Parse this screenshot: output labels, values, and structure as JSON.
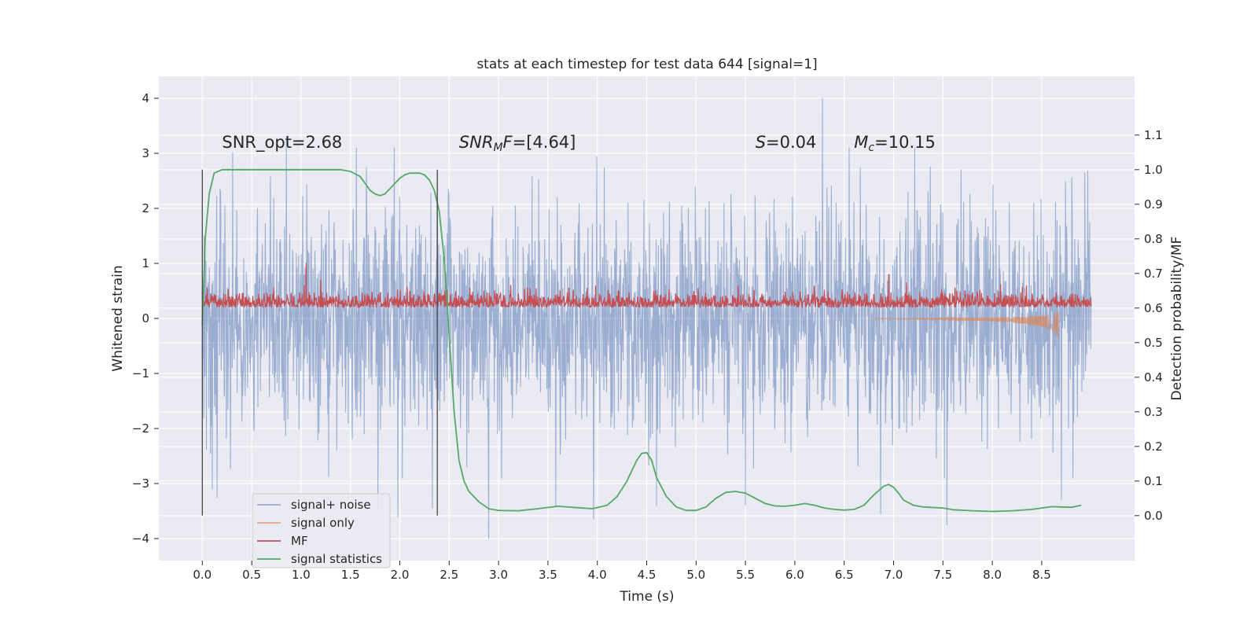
{
  "chart_data": {
    "type": "line",
    "title": "stats at each timestep for test data 644 [signal=1]",
    "xlabel": "Time (s)",
    "ylabel": "Whitened strain",
    "y2label": "Detection probability/MF",
    "xlim": [
      -0.44,
      9.44
    ],
    "ylim": [
      -4.4,
      4.4
    ],
    "y2lim": [
      -0.13,
      1.27
    ],
    "x_ticks": [
      0.0,
      0.5,
      1.0,
      1.5,
      2.0,
      2.5,
      3.0,
      3.5,
      4.0,
      4.5,
      5.0,
      5.5,
      6.0,
      6.5,
      7.0,
      7.5,
      8.0,
      8.5
    ],
    "x_tick_labels": [
      "0.0",
      "0.5",
      "1.0",
      "1.5",
      "2.0",
      "2.5",
      "3.0",
      "3.5",
      "4.0",
      "4.5",
      "5.0",
      "5.5",
      "6.0",
      "6.5",
      "7.0",
      "7.5",
      "8.0",
      "8.5"
    ],
    "y_ticks": [
      -4,
      -3,
      -2,
      -1,
      0,
      1,
      2,
      3,
      4
    ],
    "y_tick_labels": [
      "−4",
      "−3",
      "−2",
      "−1",
      "0",
      "1",
      "2",
      "3",
      "4"
    ],
    "y2_ticks": [
      0.0,
      0.1,
      0.2,
      0.3,
      0.4,
      0.5,
      0.6,
      0.7,
      0.8,
      0.9,
      1.0,
      1.1
    ],
    "y2_tick_labels": [
      "0.0",
      "0.1",
      "0.2",
      "0.3",
      "0.4",
      "0.5",
      "0.6",
      "0.7",
      "0.8",
      "0.9",
      "1.0",
      "1.1"
    ],
    "grid": true,
    "legend_position": "lower-left",
    "vlines": [
      0.0,
      2.38
    ],
    "annotations": [
      {
        "x": 0.2,
        "y": 3.2,
        "parts": [
          {
            "t": "SNR_opt=2.68",
            "s": "normal"
          }
        ]
      },
      {
        "x": 2.6,
        "y": 3.2,
        "parts": [
          {
            "t": "SNR",
            "s": "italic"
          },
          {
            "t": "M",
            "s": "italic-sub"
          },
          {
            "t": "F",
            "s": "italic"
          },
          {
            "t": "=[4.64]",
            "s": "normal"
          }
        ]
      },
      {
        "x": 5.6,
        "y": 3.2,
        "parts": [
          {
            "t": "S",
            "s": "italic"
          },
          {
            "t": "=0.04",
            "s": "normal"
          }
        ]
      },
      {
        "x": 6.6,
        "y": 3.2,
        "parts": [
          {
            "t": "M",
            "s": "italic"
          },
          {
            "t": "c",
            "s": "italic-sub"
          },
          {
            "t": "=10.15",
            "s": "normal"
          }
        ]
      }
    ],
    "series": [
      {
        "name": "signal+ noise",
        "color": "#4c72b0",
        "axis": "left",
        "kind": "noise",
        "x_range": [
          0.0,
          9.0
        ],
        "amplitude": 1.0,
        "peaks": [
          {
            "x": 0.02,
            "y": 1.5
          },
          {
            "x": 0.1,
            "y": -3.1
          },
          {
            "x": 0.15,
            "y": -3.25
          },
          {
            "x": 0.85,
            "y": 3.3
          },
          {
            "x": 1.78,
            "y": -3.5
          },
          {
            "x": 1.98,
            "y": -3.6
          },
          {
            "x": 2.33,
            "y": -3.45
          },
          {
            "x": 2.9,
            "y": -4.0
          },
          {
            "x": 3.58,
            "y": -3.4
          },
          {
            "x": 3.96,
            "y": -3.65
          },
          {
            "x": 4.6,
            "y": -3.4
          },
          {
            "x": 5.5,
            "y": -3.4
          },
          {
            "x": 6.28,
            "y": 4.0
          },
          {
            "x": 6.87,
            "y": -3.55
          },
          {
            "x": 7.54,
            "y": -3.75
          },
          {
            "x": 8.7,
            "y": -3.3
          }
        ]
      },
      {
        "name": "signal only",
        "color": "#dd8452",
        "axis": "left",
        "kind": "chirp",
        "x": [
          6.8,
          7.5,
          8.0,
          8.3,
          8.5,
          8.6,
          8.65,
          8.67
        ],
        "envelope": [
          0.005,
          0.02,
          0.05,
          0.09,
          0.14,
          0.2,
          0.28,
          0.38
        ]
      },
      {
        "name": "MF",
        "color": "#c44e52",
        "axis": "left",
        "kind": "mf",
        "x_range": [
          0.0,
          9.0
        ],
        "base": 0.2,
        "band": [
          0.05,
          0.55
        ],
        "peaks": [
          {
            "x": 1.05,
            "y": 1.0
          },
          {
            "x": 1.2,
            "y": 0.7
          },
          {
            "x": 6.95,
            "y": 0.8
          }
        ]
      },
      {
        "name": "signal statistics",
        "color": "#55a868",
        "axis": "right",
        "kind": "line",
        "x": [
          0.0,
          0.03,
          0.07,
          0.12,
          0.2,
          0.3,
          0.5,
          0.8,
          1.1,
          1.4,
          1.5,
          1.6,
          1.65,
          1.7,
          1.75,
          1.8,
          1.85,
          1.9,
          1.95,
          2.0,
          2.05,
          2.1,
          2.2,
          2.25,
          2.3,
          2.35,
          2.4,
          2.45,
          2.5,
          2.55,
          2.6,
          2.65,
          2.7,
          2.8,
          2.9,
          3.0,
          3.2,
          3.4,
          3.6,
          3.8,
          3.95,
          4.1,
          4.2,
          4.3,
          4.4,
          4.45,
          4.5,
          4.55,
          4.6,
          4.7,
          4.8,
          4.9,
          5.0,
          5.1,
          5.2,
          5.3,
          5.4,
          5.5,
          5.6,
          5.7,
          5.8,
          5.9,
          6.0,
          6.1,
          6.2,
          6.3,
          6.4,
          6.5,
          6.6,
          6.7,
          6.8,
          6.9,
          6.95,
          7.0,
          7.05,
          7.1,
          7.2,
          7.3,
          7.5,
          7.6,
          7.8,
          8.0,
          8.2,
          8.4,
          8.5,
          8.6,
          8.7,
          8.8,
          8.9
        ],
        "y": [
          0.55,
          0.8,
          0.93,
          0.99,
          1.0,
          1.0,
          1.0,
          1.0,
          1.0,
          1.0,
          0.995,
          0.98,
          0.96,
          0.94,
          0.93,
          0.925,
          0.93,
          0.945,
          0.96,
          0.975,
          0.985,
          0.99,
          0.99,
          0.985,
          0.97,
          0.94,
          0.88,
          0.74,
          0.52,
          0.3,
          0.16,
          0.1,
          0.07,
          0.04,
          0.02,
          0.015,
          0.014,
          0.02,
          0.027,
          0.023,
          0.02,
          0.03,
          0.055,
          0.1,
          0.16,
          0.18,
          0.182,
          0.16,
          0.11,
          0.055,
          0.025,
          0.015,
          0.015,
          0.025,
          0.05,
          0.067,
          0.07,
          0.065,
          0.05,
          0.035,
          0.028,
          0.027,
          0.03,
          0.035,
          0.03,
          0.022,
          0.018,
          0.016,
          0.018,
          0.03,
          0.06,
          0.085,
          0.09,
          0.082,
          0.065,
          0.045,
          0.03,
          0.025,
          0.022,
          0.017,
          0.014,
          0.012,
          0.014,
          0.018,
          0.022,
          0.026,
          0.025,
          0.024,
          0.03
        ]
      }
    ]
  }
}
